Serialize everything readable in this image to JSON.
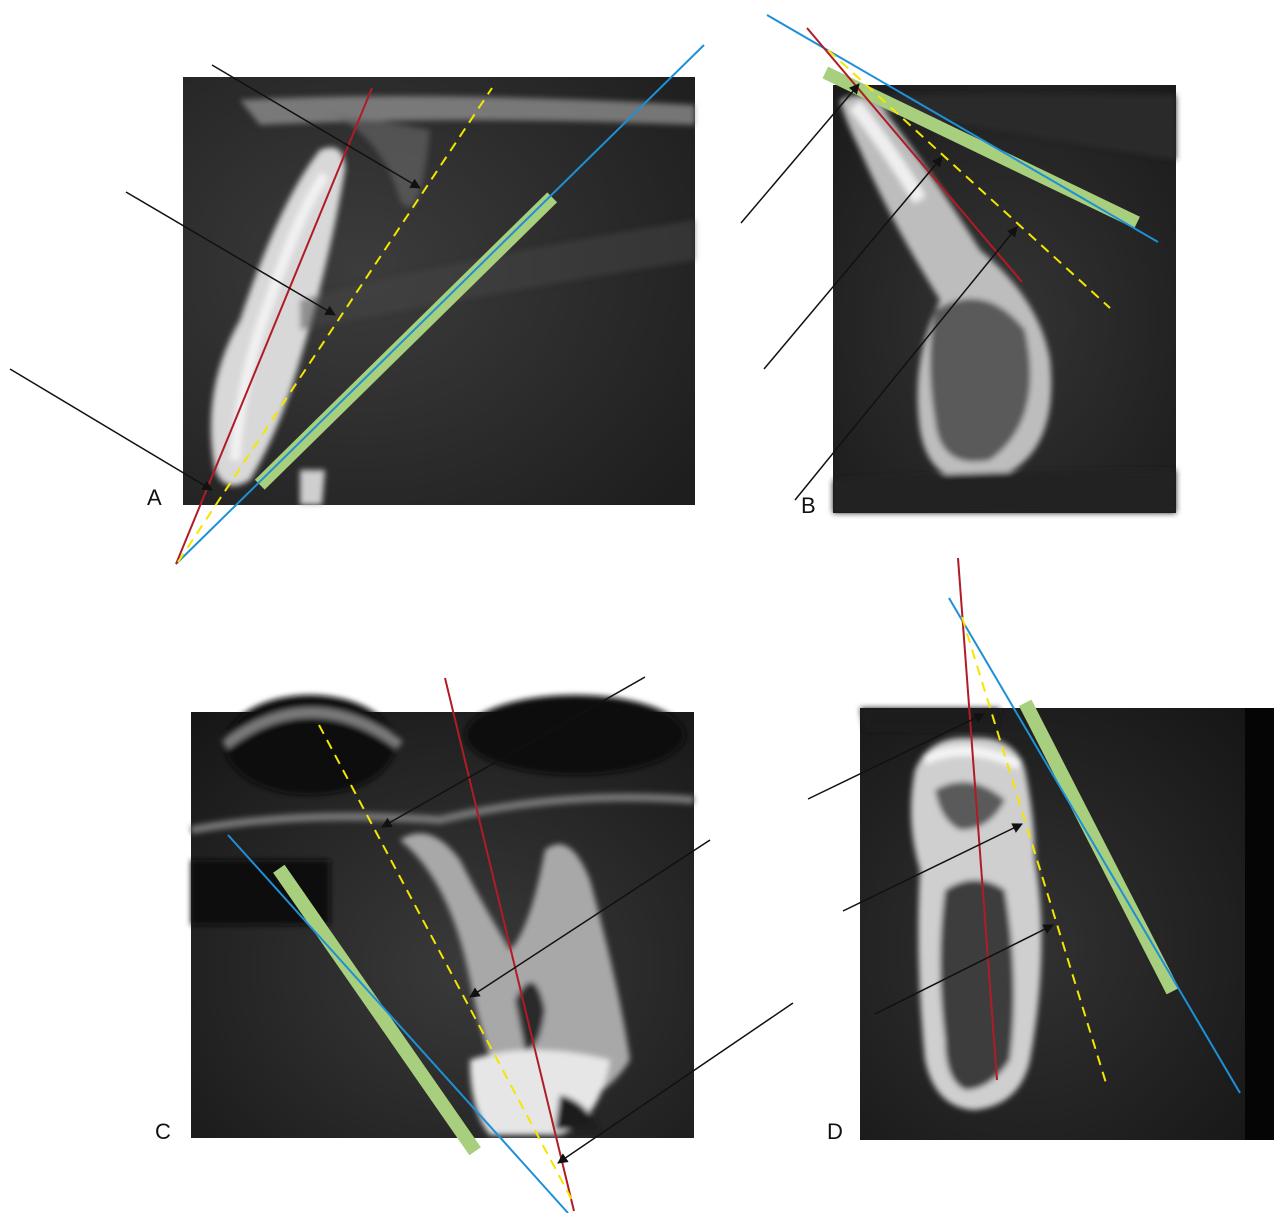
{
  "panels": [
    {
      "label": "A"
    },
    {
      "label": "B"
    },
    {
      "label": "C"
    },
    {
      "label": "D"
    }
  ],
  "colors": {
    "red_axis": "#b01c26",
    "yellow_dashed": "#f3e600",
    "blue_line": "#1e90d8",
    "green_bar": "#a8cf7d",
    "arrow": "#111111"
  }
}
